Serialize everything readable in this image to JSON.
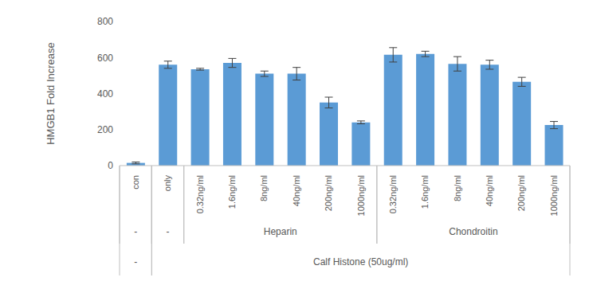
{
  "chart_data": {
    "type": "bar",
    "categories": [
      "con",
      "only",
      "0.32ng/ml",
      "1.6ng/ml",
      "8ng/ml",
      "40ng/ml",
      "200ng/ml",
      "1000ng/ml",
      "0.32ng/ml",
      "1.6ng/ml",
      "8ng/ml",
      "40ng/ml",
      "200ng/ml",
      "1000ng/ml"
    ],
    "values": [
      15,
      560,
      535,
      570,
      510,
      510,
      350,
      240,
      615,
      620,
      565,
      560,
      465,
      225
    ],
    "errors": [
      5,
      20,
      5,
      25,
      15,
      35,
      30,
      8,
      40,
      15,
      40,
      25,
      25,
      20
    ],
    "color": "#5b9bd5",
    "y_label": "HMGB1 Fold Increase",
    "ylim": [
      0,
      800
    ],
    "yticks": [
      0,
      200,
      400,
      600,
      800
    ],
    "grid": false,
    "group_rows": [
      [
        {
          "label": "-",
          "from": 0,
          "to": 0
        },
        {
          "label": "-",
          "from": 1,
          "to": 1
        },
        {
          "label": "Heparin",
          "from": 2,
          "to": 7
        },
        {
          "label": "Chondroitin",
          "from": 8,
          "to": 13
        }
      ],
      [
        {
          "label": "-",
          "from": 0,
          "to": 0
        },
        {
          "label": "Calf Histone (50ug/ml)",
          "from": 1,
          "to": 13
        }
      ]
    ]
  }
}
